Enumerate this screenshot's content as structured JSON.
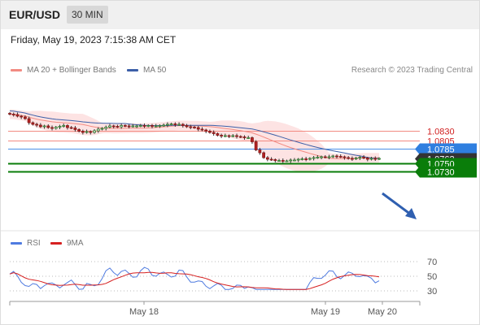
{
  "header": {
    "pair": "EUR/USD",
    "timeframe": "30 MIN"
  },
  "datetime": "Friday, May 19, 2023 7:15:38 AM CET",
  "legend": {
    "ma20": {
      "label": "MA 20 + Bollinger Bands",
      "color": "#f28b82"
    },
    "ma50": {
      "label": "MA 50",
      "color": "#3c5fa8"
    }
  },
  "credit": "Research © 2023 Trading Central",
  "price_levels": [
    {
      "label": "1.0830",
      "style": "resistance-text",
      "color": "#d12020"
    },
    {
      "label": "1.0805",
      "style": "resistance-text",
      "color": "#d12020"
    },
    {
      "label": "1.0785",
      "style": "ma-tag",
      "color": "#2f7fe0"
    },
    {
      "label": "1.0762",
      "style": "current-tag",
      "color": "#333333"
    },
    {
      "label": "1.0750",
      "style": "support-tag",
      "color": "#0a7d0a"
    },
    {
      "label": "1.0730",
      "style": "support-tag",
      "color": "#0a7d0a"
    }
  ],
  "rsi_legend": {
    "rsi": {
      "label": "RSI",
      "color": "#4f7be0"
    },
    "ma9": {
      "label": "9MA",
      "color": "#d62020"
    }
  },
  "rsi_levels": [
    "70",
    "50",
    "30"
  ],
  "x_labels": [
    "May 18",
    "May 19",
    "May 20"
  ],
  "chart_data": {
    "type": "candlestick",
    "instrument": "EUR/USD",
    "interval": "30 MIN",
    "y_reference_levels": [
      1.083,
      1.0805,
      1.0785,
      1.0762,
      1.075,
      1.073
    ],
    "closes": [
      1.0871,
      1.087,
      1.0866,
      1.0864,
      1.086,
      1.085,
      1.0846,
      1.0844,
      1.084,
      1.0842,
      1.0838,
      1.0836,
      1.0839,
      1.0841,
      1.0843,
      1.0838,
      1.0837,
      1.0833,
      1.0829,
      1.0826,
      1.0828,
      1.0826,
      1.083,
      1.0834,
      1.0836,
      1.0839,
      1.0842,
      1.0841,
      1.084,
      1.0843,
      1.0842,
      1.0841,
      1.0842,
      1.0842,
      1.0843,
      1.0842,
      1.0843,
      1.0841,
      1.0842,
      1.0843,
      1.0844,
      1.0846,
      1.0847,
      1.0845,
      1.0846,
      1.0843,
      1.084,
      1.0839,
      1.0838,
      1.0834,
      1.0832,
      1.0829,
      1.0826,
      1.0823,
      1.0819,
      1.0817,
      1.0818,
      1.0817,
      1.0818,
      1.0816,
      1.0815,
      1.0813,
      1.0813,
      1.0803,
      1.0783,
      1.0776,
      1.0764,
      1.076,
      1.0759,
      1.0757,
      1.0757,
      1.0756,
      1.0756,
      1.0758,
      1.0758,
      1.076,
      1.0761,
      1.076,
      1.0762,
      1.0764,
      1.0765,
      1.0766,
      1.0765,
      1.0766,
      1.0768,
      1.0767,
      1.0766,
      1.0764,
      1.0762,
      1.0761,
      1.0763,
      1.0765,
      1.0763,
      1.076,
      1.0762,
      1.0761,
      1.0762
    ],
    "x_tick_labels": [
      "May 18",
      "May 19",
      "May 20"
    ],
    "rsi": {
      "levels": [
        70,
        50,
        30
      ],
      "series": [
        "RSI",
        "9MA"
      ]
    }
  }
}
